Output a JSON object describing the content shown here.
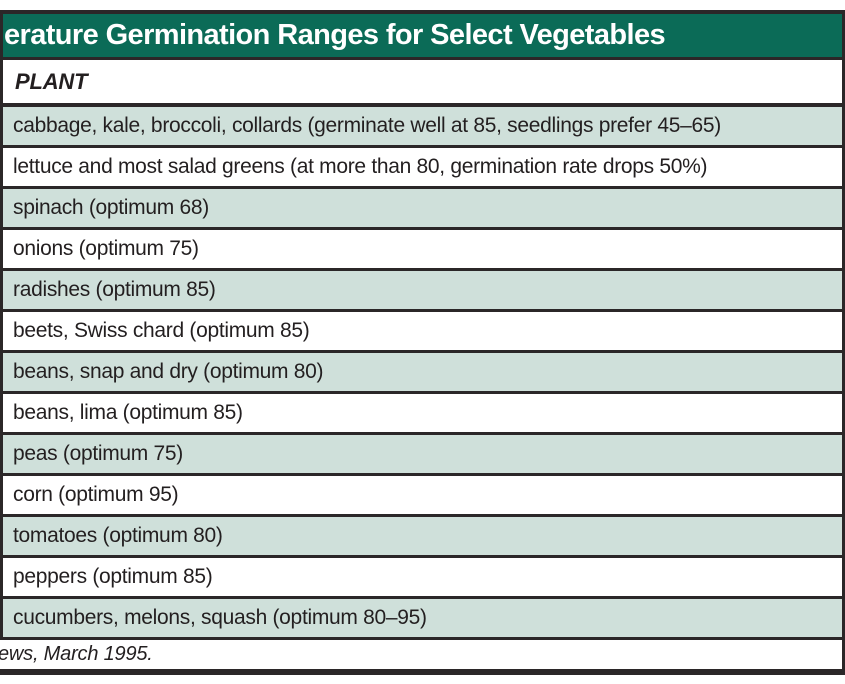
{
  "colors": {
    "header_bg": "#0b6b57",
    "shaded_row_bg": "#cfe0da",
    "text": "#231f20",
    "border": "#2b2728"
  },
  "header": {
    "title": "erature Germination Ranges for Select Vegetables"
  },
  "table": {
    "column_header": "PLANT",
    "rows": [
      "cabbage, kale, broccoli, collards (germinate well at 85, seedlings prefer 45–65)",
      "lettuce and most salad greens (at more than 80, germination rate drops 50%)",
      "spinach (optimum 68)",
      "onions (optimum 75)",
      "radishes (optimum 85)",
      "beets, Swiss chard (optimum 85)",
      "beans, snap and dry (optimum 80)",
      "beans, lima (optimum 85)",
      "peas (optimum 75)",
      "corn (optimum 95)",
      "tomatoes (optimum 80)",
      "peppers (optimum 85)",
      "cucumbers, melons, squash (optimum 80–95)"
    ]
  },
  "footer": {
    "source_note": "ews, March 1995."
  }
}
